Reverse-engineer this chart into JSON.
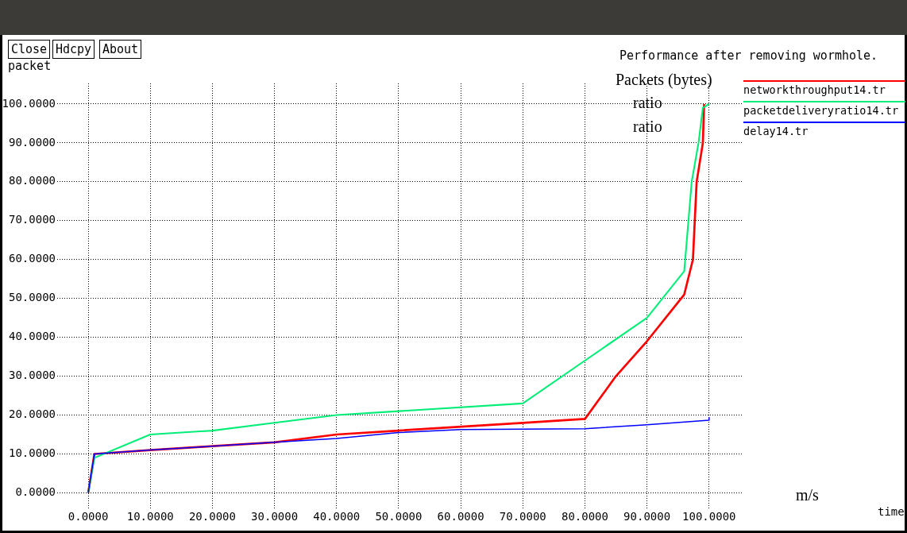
{
  "chart_data": {
    "type": "line",
    "title": "Performance after removing wormhole.",
    "ylabel": "packet",
    "annotations": [
      "Close",
      "Hdcpy",
      "About",
      "Packets (bytes)",
      "ratio",
      "ratio",
      "m/s",
      "time"
    ],
    "xlim": [
      -5,
      105.4
    ],
    "ylim": [
      -4,
      105.3
    ],
    "xticks": [
      {
        "value": 0,
        "label": "0.0000"
      },
      {
        "value": 10,
        "label": "10.0000"
      },
      {
        "value": 20,
        "label": "20.0000"
      },
      {
        "value": 30,
        "label": "30.0000"
      },
      {
        "value": 40,
        "label": "40.0000"
      },
      {
        "value": 50,
        "label": "50.0000"
      },
      {
        "value": 60,
        "label": "60.0000"
      },
      {
        "value": 70,
        "label": "70.0000"
      },
      {
        "value": 80,
        "label": "80.0000"
      },
      {
        "value": 90,
        "label": "90.0000"
      },
      {
        "value": 100,
        "label": "100.0000"
      }
    ],
    "yticks": [
      {
        "value": 0,
        "label": "0.0000"
      },
      {
        "value": 10,
        "label": "10.0000"
      },
      {
        "value": 20,
        "label": "20.0000"
      },
      {
        "value": 30,
        "label": "30.0000"
      },
      {
        "value": 40,
        "label": "40.0000"
      },
      {
        "value": 50,
        "label": "50.0000"
      },
      {
        "value": 60,
        "label": "60.0000"
      },
      {
        "value": 70,
        "label": "70.0000"
      },
      {
        "value": 80,
        "label": "80.0000"
      },
      {
        "value": 90,
        "label": "90.0000"
      },
      {
        "value": 100,
        "label": "100.0000"
      }
    ],
    "grid": true,
    "legend": "top right",
    "series": [
      {
        "name": "networkthroughput14.tr",
        "color": "#ff0000",
        "x": [
          0,
          1,
          10,
          20,
          30,
          40,
          50,
          70,
          80,
          85,
          90,
          96,
          97.4,
          98,
          99,
          99.2
        ],
        "values": [
          0,
          10,
          11,
          12,
          13,
          15,
          16,
          18,
          19,
          30,
          39,
          51,
          60,
          80,
          90,
          100
        ]
      },
      {
        "name": "packetdeliveryratio14.tr",
        "color": "#00ee77",
        "x": [
          0,
          1,
          10,
          20,
          30,
          40,
          50,
          70,
          80,
          90,
          96,
          97.2,
          98.3,
          99,
          100
        ],
        "values": [
          0,
          9,
          15,
          16,
          18,
          20,
          21,
          23,
          34,
          45,
          57,
          80,
          90,
          99,
          100
        ]
      },
      {
        "name": "delay14.tr",
        "color": "#0000ff",
        "x": [
          0,
          1,
          10,
          20,
          30,
          40,
          50,
          60,
          80,
          90,
          100,
          100
        ],
        "values": [
          0,
          10,
          11,
          12,
          13,
          14,
          15.5,
          16.3,
          16.5,
          17.5,
          18.7,
          19.5
        ]
      }
    ]
  }
}
